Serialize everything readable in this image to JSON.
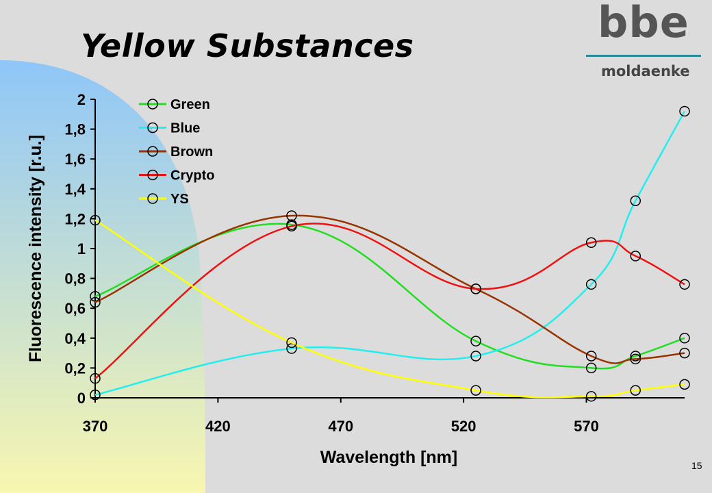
{
  "slide": {
    "title": "Yellow Substances",
    "logo": {
      "text": "bbe",
      "subtext": "moldaenke"
    },
    "page_number": "15"
  },
  "colors": {
    "background": "#dcdcdc",
    "left_gradient_top": "#8fc6f8",
    "left_gradient_bottom": "#f8f6b0",
    "logo_accent": "#2a8a9a"
  },
  "chart_data": {
    "type": "line",
    "smooth": true,
    "markers": "open-circle",
    "xlabel": "Wavelength [nm]",
    "ylabel": "Fluorescence intensity [r.u.]",
    "xlim": [
      370,
      610
    ],
    "ylim": [
      0,
      2
    ],
    "x_ticks": [
      370,
      420,
      470,
      520,
      570
    ],
    "x_tick_labels": [
      "370",
      "420",
      "470",
      "520",
      "570"
    ],
    "y_ticks": [
      0,
      0.2,
      0.4,
      0.6,
      0.8,
      1,
      1.2,
      1.4,
      1.6,
      1.8,
      2
    ],
    "y_tick_labels": [
      "0",
      "0,2",
      "0,4",
      "0,6",
      "0,8",
      "1",
      "1,2",
      "1,4",
      "1,6",
      "1,8",
      "2"
    ],
    "grid": false,
    "legend_position": "top-left",
    "x": [
      370,
      450,
      525,
      572,
      590,
      610
    ],
    "series": [
      {
        "name": "Green",
        "color": "#22dd22",
        "values": [
          0.68,
          1.16,
          0.38,
          0.2,
          0.28,
          0.4
        ]
      },
      {
        "name": "Blue",
        "color": "#22eeee",
        "values": [
          0.02,
          0.33,
          0.28,
          0.76,
          1.32,
          1.92
        ]
      },
      {
        "name": "Brown",
        "color": "#993300",
        "values": [
          0.64,
          1.22,
          0.73,
          0.28,
          0.26,
          0.3
        ]
      },
      {
        "name": "Crypto",
        "color": "#ee1111",
        "values": [
          0.13,
          1.15,
          0.73,
          1.04,
          0.95,
          0.76
        ]
      },
      {
        "name": "YS",
        "color": "#ffff00",
        "values": [
          1.19,
          0.37,
          0.05,
          0.01,
          0.05,
          0.09
        ]
      }
    ]
  }
}
